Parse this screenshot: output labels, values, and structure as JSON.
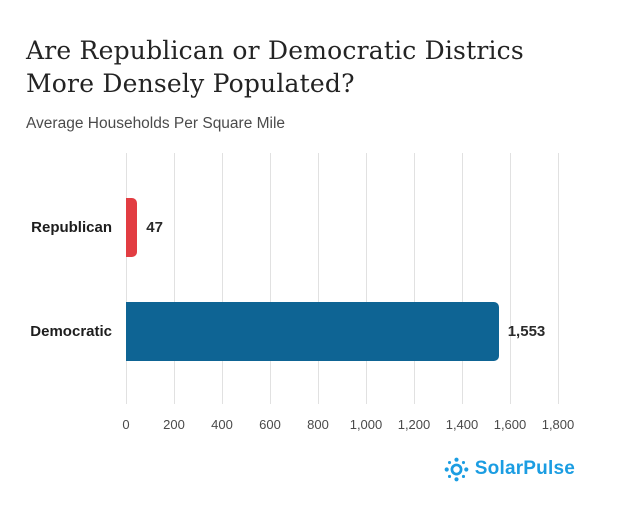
{
  "header": {
    "title": "Are Republican or Democratic Districs More Densely Populated?",
    "title_lines": [
      "Are Republican or Democratic Districs",
      "More Densely Populated?"
    ],
    "subtitle": "Average Households Per Square Mile"
  },
  "chart_data": {
    "type": "bar",
    "orientation": "horizontal",
    "title": "Are Republican or Democratic Districs More Densely Populated?",
    "subtitle": "Average Households Per Square Mile",
    "categories": [
      "Republican",
      "Democratic"
    ],
    "values": [
      47,
      1553
    ],
    "value_labels": [
      "47",
      "1,553"
    ],
    "bar_colors": [
      "#e23d42",
      "#0e6494"
    ],
    "xlim": [
      0,
      1800
    ],
    "xticks": [
      0,
      200,
      400,
      600,
      800,
      1000,
      1200,
      1400,
      1600,
      1800
    ],
    "xtick_labels": [
      "0",
      "200",
      "400",
      "600",
      "800",
      "1,000",
      "1,200",
      "1,400",
      "1,600",
      "1,800"
    ],
    "grid": "vertical-only",
    "legend": "none",
    "gridline_color": "#e1e1e1"
  },
  "footer": {
    "brand": "SolarPulse",
    "brand_color": "#1b9de2",
    "logo_icon": "sun-icon"
  }
}
